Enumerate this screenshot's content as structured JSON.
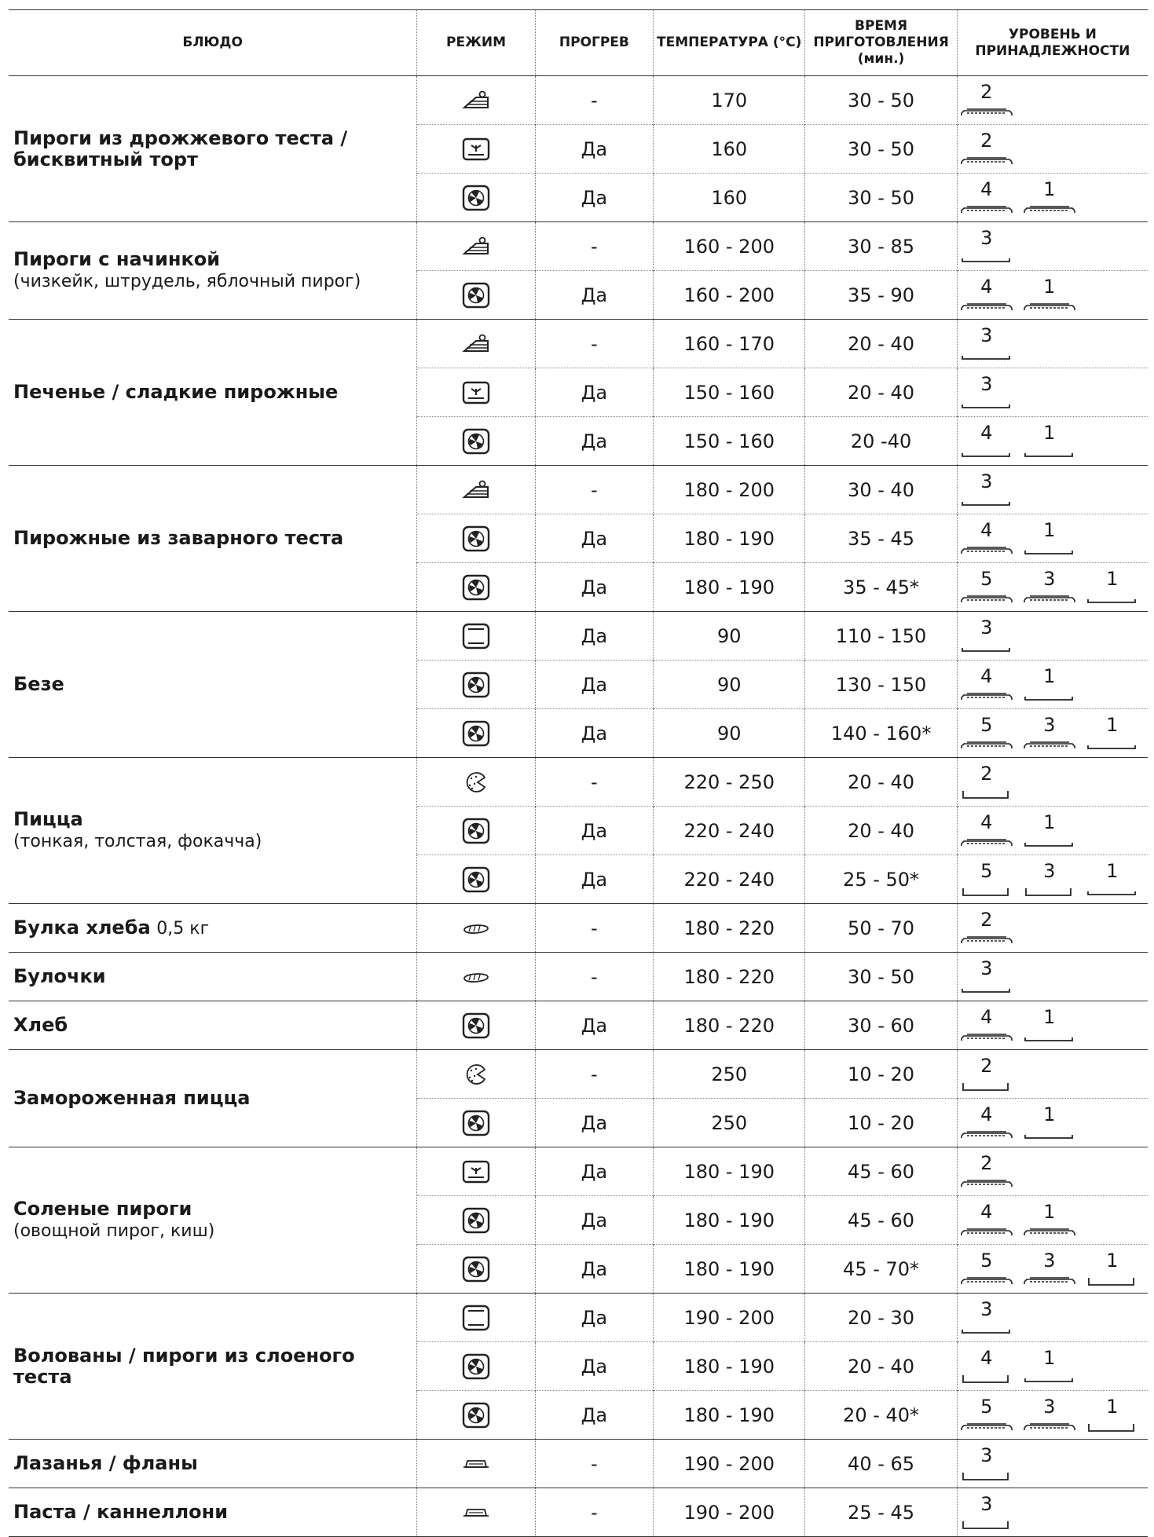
{
  "headers": {
    "dish": "БЛЮДО",
    "mode": "РЕЖИМ",
    "preheat": "ПРОГРЕВ",
    "temp": "ТЕМПЕРАТУРА (°C)",
    "time": "ВРЕМЯ ПРИГОТОВЛЕНИЯ (мин.)",
    "level": "УРОВЕНЬ И ПРИНАДЛЕЖНОСТИ"
  },
  "groups": [
    {
      "name": "Пироги из дрожжевого теста / бисквитный торт",
      "note": "",
      "rows": [
        {
          "mode": "cake",
          "preheat": "-",
          "temp": "170",
          "time": "30 - 50",
          "levels": [
            {
              "n": "2",
              "acc": "rack"
            }
          ]
        },
        {
          "mode": "convection",
          "preheat": "Да",
          "temp": "160",
          "time": "30 - 50",
          "levels": [
            {
              "n": "2",
              "acc": "rack"
            }
          ]
        },
        {
          "mode": "fan",
          "preheat": "Да",
          "temp": "160",
          "time": "30 - 50",
          "levels": [
            {
              "n": "4",
              "acc": "rack"
            },
            {
              "n": "1",
              "acc": "rack"
            }
          ]
        }
      ]
    },
    {
      "name": "Пироги с начинкой",
      "note": "(чизкейк, штрудель, яблочный пирог)",
      "rows": [
        {
          "mode": "cake",
          "preheat": "-",
          "temp": "160 - 200",
          "time": "30 - 85",
          "levels": [
            {
              "n": "3",
              "acc": "tray"
            }
          ]
        },
        {
          "mode": "fan",
          "preheat": "Да",
          "temp": "160 - 200",
          "time": "35 - 90",
          "levels": [
            {
              "n": "4",
              "acc": "rack"
            },
            {
              "n": "1",
              "acc": "rack"
            }
          ]
        }
      ]
    },
    {
      "name": "Печенье / сладкие пирожные",
      "note": "",
      "rows": [
        {
          "mode": "cake",
          "preheat": "-",
          "temp": "160 - 170",
          "time": "20 - 40",
          "levels": [
            {
              "n": "3",
              "acc": "tray"
            }
          ]
        },
        {
          "mode": "convection",
          "preheat": "Да",
          "temp": "150 - 160",
          "time": "20 - 40",
          "levels": [
            {
              "n": "3",
              "acc": "tray"
            }
          ]
        },
        {
          "mode": "fan",
          "preheat": "Да",
          "temp": "150 - 160",
          "time": "20 -40",
          "levels": [
            {
              "n": "4",
              "acc": "tray"
            },
            {
              "n": "1",
              "acc": "tray"
            }
          ]
        }
      ]
    },
    {
      "name": "Пирожные из заварного теста",
      "note": "",
      "rows": [
        {
          "mode": "cake",
          "preheat": "-",
          "temp": "180 - 200",
          "time": "30 - 40",
          "levels": [
            {
              "n": "3",
              "acc": "tray"
            }
          ]
        },
        {
          "mode": "fan",
          "preheat": "Да",
          "temp": "180 - 190",
          "time": "35 - 45",
          "levels": [
            {
              "n": "4",
              "acc": "rack"
            },
            {
              "n": "1",
              "acc": "tray"
            }
          ]
        },
        {
          "mode": "fan",
          "preheat": "Да",
          "temp": "180 - 190",
          "time": "35 - 45*",
          "levels": [
            {
              "n": "5",
              "acc": "rack"
            },
            {
              "n": "3",
              "acc": "rack"
            },
            {
              "n": "1",
              "acc": "tray"
            }
          ]
        }
      ]
    },
    {
      "name": "Безе",
      "note": "",
      "rows": [
        {
          "mode": "static",
          "preheat": "Да",
          "temp": "90",
          "time": "110 - 150",
          "levels": [
            {
              "n": "3",
              "acc": "tray"
            }
          ]
        },
        {
          "mode": "fan",
          "preheat": "Да",
          "temp": "90",
          "time": "130 - 150",
          "levels": [
            {
              "n": "4",
              "acc": "rack"
            },
            {
              "n": "1",
              "acc": "tray"
            }
          ]
        },
        {
          "mode": "fan",
          "preheat": "Да",
          "temp": "90",
          "time": "140 - 160*",
          "levels": [
            {
              "n": "5",
              "acc": "rack"
            },
            {
              "n": "3",
              "acc": "rack"
            },
            {
              "n": "1",
              "acc": "tray"
            }
          ]
        }
      ]
    },
    {
      "name": "Пицца",
      "note": "(тонкая, толстая, фокачча)",
      "rows": [
        {
          "mode": "pizza",
          "preheat": "-",
          "temp": "220 - 250",
          "time": "20 - 40",
          "levels": [
            {
              "n": "2",
              "acc": "pan"
            }
          ]
        },
        {
          "mode": "fan",
          "preheat": "Да",
          "temp": "220 - 240",
          "time": "20 - 40",
          "levels": [
            {
              "n": "4",
              "acc": "rack"
            },
            {
              "n": "1",
              "acc": "tray"
            }
          ]
        },
        {
          "mode": "fan",
          "preheat": "Да",
          "temp": "220 - 240",
          "time": "25 - 50*",
          "levels": [
            {
              "n": "5",
              "acc": "pan"
            },
            {
              "n": "3",
              "acc": "pan"
            },
            {
              "n": "1",
              "acc": "tray"
            }
          ]
        }
      ]
    },
    {
      "name": "Булка хлеба",
      "note": "0,5 кг",
      "rows": [
        {
          "mode": "bread",
          "preheat": "-",
          "temp": "180 - 220",
          "time": "50 - 70",
          "levels": [
            {
              "n": "2",
              "acc": "rack"
            }
          ]
        }
      ]
    },
    {
      "name": "Булочки",
      "note": "",
      "rows": [
        {
          "mode": "bread",
          "preheat": "-",
          "temp": "180 - 220",
          "time": "30 - 50",
          "levels": [
            {
              "n": "3",
              "acc": "tray"
            }
          ]
        }
      ]
    },
    {
      "name": "Хлеб",
      "note": "",
      "rows": [
        {
          "mode": "fan",
          "preheat": "Да",
          "temp": "180 - 220",
          "time": "30 - 60",
          "levels": [
            {
              "n": "4",
              "acc": "rack"
            },
            {
              "n": "1",
              "acc": "tray"
            }
          ]
        }
      ]
    },
    {
      "name": "Замороженная пицца",
      "note": "",
      "rows": [
        {
          "mode": "pizza",
          "preheat": "-",
          "temp": "250",
          "time": "10 - 20",
          "levels": [
            {
              "n": "2",
              "acc": "pan"
            }
          ]
        },
        {
          "mode": "fan",
          "preheat": "Да",
          "temp": "250",
          "time": "10 - 20",
          "levels": [
            {
              "n": "4",
              "acc": "rack"
            },
            {
              "n": "1",
              "acc": "tray"
            }
          ]
        }
      ]
    },
    {
      "name": "Соленые пироги",
      "note": "(овощной пирог, киш)",
      "rows": [
        {
          "mode": "convection",
          "preheat": "Да",
          "temp": "180 - 190",
          "time": "45 - 60",
          "levels": [
            {
              "n": "2",
              "acc": "rack"
            }
          ]
        },
        {
          "mode": "fan",
          "preheat": "Да",
          "temp": "180 - 190",
          "time": "45 - 60",
          "levels": [
            {
              "n": "4",
              "acc": "rack"
            },
            {
              "n": "1",
              "acc": "rack"
            }
          ]
        },
        {
          "mode": "fan",
          "preheat": "Да",
          "temp": "180 - 190",
          "time": "45 - 70*",
          "levels": [
            {
              "n": "5",
              "acc": "rack"
            },
            {
              "n": "3",
              "acc": "rack"
            },
            {
              "n": "1",
              "acc": "pan"
            }
          ]
        }
      ]
    },
    {
      "name": "Волованы / пироги из слоеного теста",
      "note": "",
      "rows": [
        {
          "mode": "static",
          "preheat": "Да",
          "temp": "190 - 200",
          "time": "20 - 30",
          "levels": [
            {
              "n": "3",
              "acc": "tray"
            }
          ]
        },
        {
          "mode": "fan",
          "preheat": "Да",
          "temp": "180 - 190",
          "time": "20 - 40",
          "levels": [
            {
              "n": "4",
              "acc": "pan"
            },
            {
              "n": "1",
              "acc": "tray"
            }
          ]
        },
        {
          "mode": "fan",
          "preheat": "Да",
          "temp": "180 - 190",
          "time": "20 - 40*",
          "levels": [
            {
              "n": "5",
              "acc": "rack"
            },
            {
              "n": "3",
              "acc": "rack"
            },
            {
              "n": "1",
              "acc": "pan"
            }
          ]
        }
      ]
    },
    {
      "name": "Лазанья / фланы",
      "note": "",
      "rows": [
        {
          "mode": "dish",
          "preheat": "-",
          "temp": "190 - 200",
          "time": "40 - 65",
          "levels": [
            {
              "n": "3",
              "acc": "pan"
            }
          ]
        }
      ]
    },
    {
      "name": "Паста / каннеллони",
      "note": "",
      "rows": [
        {
          "mode": "dish",
          "preheat": "-",
          "temp": "190 - 200",
          "time": "25 - 45",
          "levels": [
            {
              "n": "3",
              "acc": "pan"
            }
          ]
        }
      ]
    }
  ]
}
